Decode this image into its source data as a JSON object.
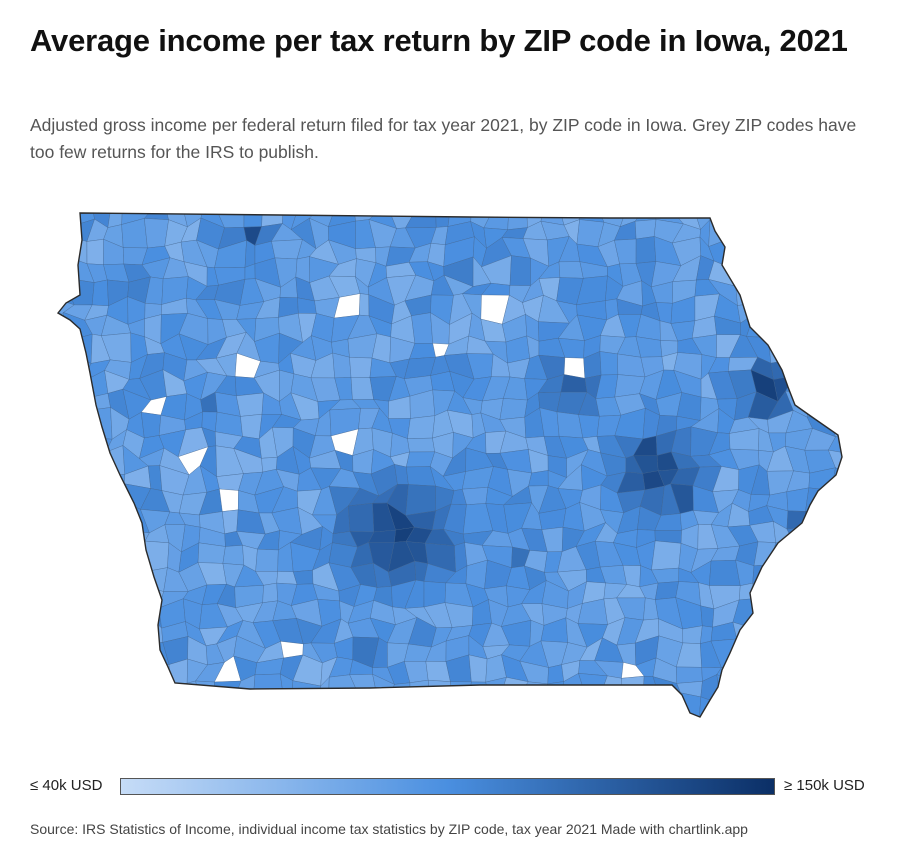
{
  "title": "Average income per tax return by ZIP code in Iowa, 2021",
  "subtitle": "Adjusted gross income per federal return filed for tax year 2021, by ZIP code in Iowa. Grey ZIP codes have too few returns for the IRS to publish.",
  "legend": {
    "min_label": "≤ 40k USD",
    "max_label": "≥ 150k USD",
    "min_color": "#c6dcf7",
    "mid_color": "#4a8fe0",
    "max_color": "#0b2f66"
  },
  "source": "Source: IRS Statistics of Income, individual income tax statistics by ZIP code, tax year 2021 Made with chartlink.app",
  "colors": {
    "no_data": "#ffffff",
    "border": "#2b2b2b",
    "zip_border": "#3d5f8a"
  }
}
